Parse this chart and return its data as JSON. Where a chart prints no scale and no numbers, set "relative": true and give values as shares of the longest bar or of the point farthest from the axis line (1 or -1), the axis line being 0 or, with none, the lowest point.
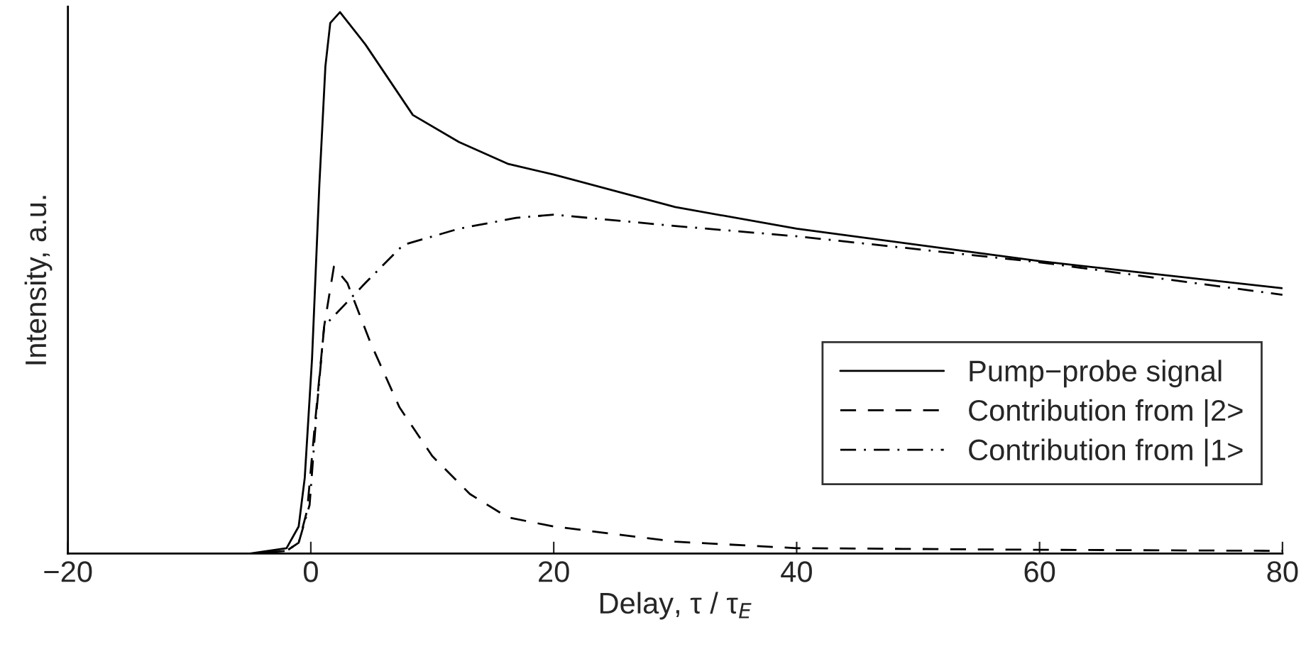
{
  "chart_data": {
    "type": "line",
    "relative": true,
    "xlabel": "Delay, τ / τ$_{E}$",
    "ylabel": "Intensity, a.u.",
    "xlim": [
      -20,
      80
    ],
    "xticks": [
      {
        "value": -20,
        "label": "−20"
      },
      0,
      20,
      40,
      60,
      80
    ],
    "tick_labels": "x",
    "grid": false,
    "legend": "right",
    "series": [
      {
        "name": "Pump−probe signal",
        "color": "#000000",
        "line_style": "solid",
        "x": [
          -20,
          -5,
          -2,
          -1,
          -0.5,
          0.1,
          0.7,
          1.2,
          1.6,
          2.4,
          4.5,
          8.4,
          12.2,
          16.2,
          20,
          30,
          40,
          60,
          80
        ],
        "values": [
          0,
          0,
          0.01,
          0.05,
          0.14,
          0.36,
          0.68,
          0.9,
          0.98,
          1.0,
          0.94,
          0.81,
          0.76,
          0.72,
          0.7,
          0.64,
          0.6,
          0.54,
          0.49
        ]
      },
      {
        "name": "Contribution from |2>",
        "color": "#000000",
        "line_style": "dashed",
        "x": [
          -20,
          -5,
          -2,
          -1,
          -0.3,
          0.3,
          1.1,
          1.9,
          3.0,
          4.9,
          7.3,
          10,
          13.1,
          16.2,
          20,
          30,
          40,
          60,
          80
        ],
        "values": [
          0,
          0,
          0.005,
          0.02,
          0.08,
          0.23,
          0.42,
          0.53,
          0.5,
          0.39,
          0.27,
          0.18,
          0.11,
          0.067,
          0.05,
          0.022,
          0.01,
          0.007,
          0.005
        ]
      },
      {
        "name": "Contribution from |1>",
        "color": "#000000",
        "line_style": "dashdot",
        "x": [
          -20,
          -5,
          -2,
          -1,
          -0.1,
          0.5,
          1.1,
          4.5,
          7.6,
          12.2,
          16.9,
          20,
          30,
          40,
          60,
          80
        ],
        "values": [
          0,
          0,
          0.005,
          0.02,
          0.09,
          0.27,
          0.42,
          0.5,
          0.57,
          0.6,
          0.62,
          0.626,
          0.605,
          0.586,
          0.538,
          0.478
        ]
      }
    ]
  }
}
